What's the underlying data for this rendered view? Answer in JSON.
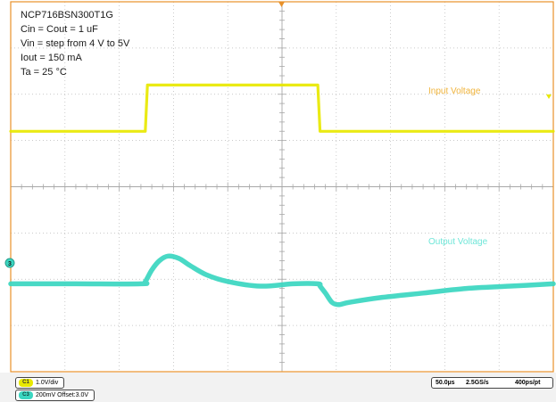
{
  "annotation_lines": [
    "NCP716BSN300T1G",
    "Cin = Cout = 1 uF",
    "Vin = step from 4 V to 5V",
    "Iout = 150 mA",
    "Ta = 25 °C"
  ],
  "chart_data": {
    "type": "line",
    "title": "",
    "xlabel": "",
    "ylabel": "",
    "grid": true,
    "divisions": {
      "x": 10,
      "y": 8
    },
    "time_per_div_us": 50,
    "xlim_us": [
      0,
      500
    ],
    "series": [
      {
        "name": "Input Voltage",
        "channel": "C1",
        "color": "#e8e800",
        "label_color": "#f0b43c",
        "volts_per_div": 1.0,
        "x_us": [
          0,
          124,
          126,
          283,
          285,
          500
        ],
        "y_v": [
          4,
          4,
          5,
          5,
          4,
          4
        ]
      },
      {
        "name": "Output Voltage",
        "channel": "C3",
        "color": "#3ad6c0",
        "label_color": "#6ee6d8",
        "volts_per_div": 0.2,
        "offset_v": 3.0,
        "x_us": [
          0,
          60,
          120,
          124,
          130,
          137,
          145,
          155,
          165,
          180,
          200,
          230,
          260,
          283,
          285,
          290,
          296,
          302,
          312,
          340,
          380,
          420,
          460,
          500
        ],
        "y_v": [
          3.0,
          3.0,
          3.0,
          3.01,
          3.06,
          3.1,
          3.12,
          3.11,
          3.08,
          3.04,
          3.01,
          2.99,
          3.0,
          3.0,
          2.99,
          2.96,
          2.92,
          2.91,
          2.92,
          2.94,
          2.96,
          2.98,
          2.99,
          3.0
        ]
      }
    ]
  },
  "trace_labels": {
    "input": "Input Voltage",
    "output": "Output Voltage"
  },
  "markers": {
    "ground_marker_label": "3"
  },
  "status_bar": {
    "ch1_tag": "C1",
    "ch1_text": "1.0V/div",
    "ch3_tag": "C3",
    "ch3_text": "200mV  Offset:3.0V",
    "timebase": "50.0µs",
    "sample_rate": "2.5GS/s",
    "resolution": "400ps/pt"
  }
}
